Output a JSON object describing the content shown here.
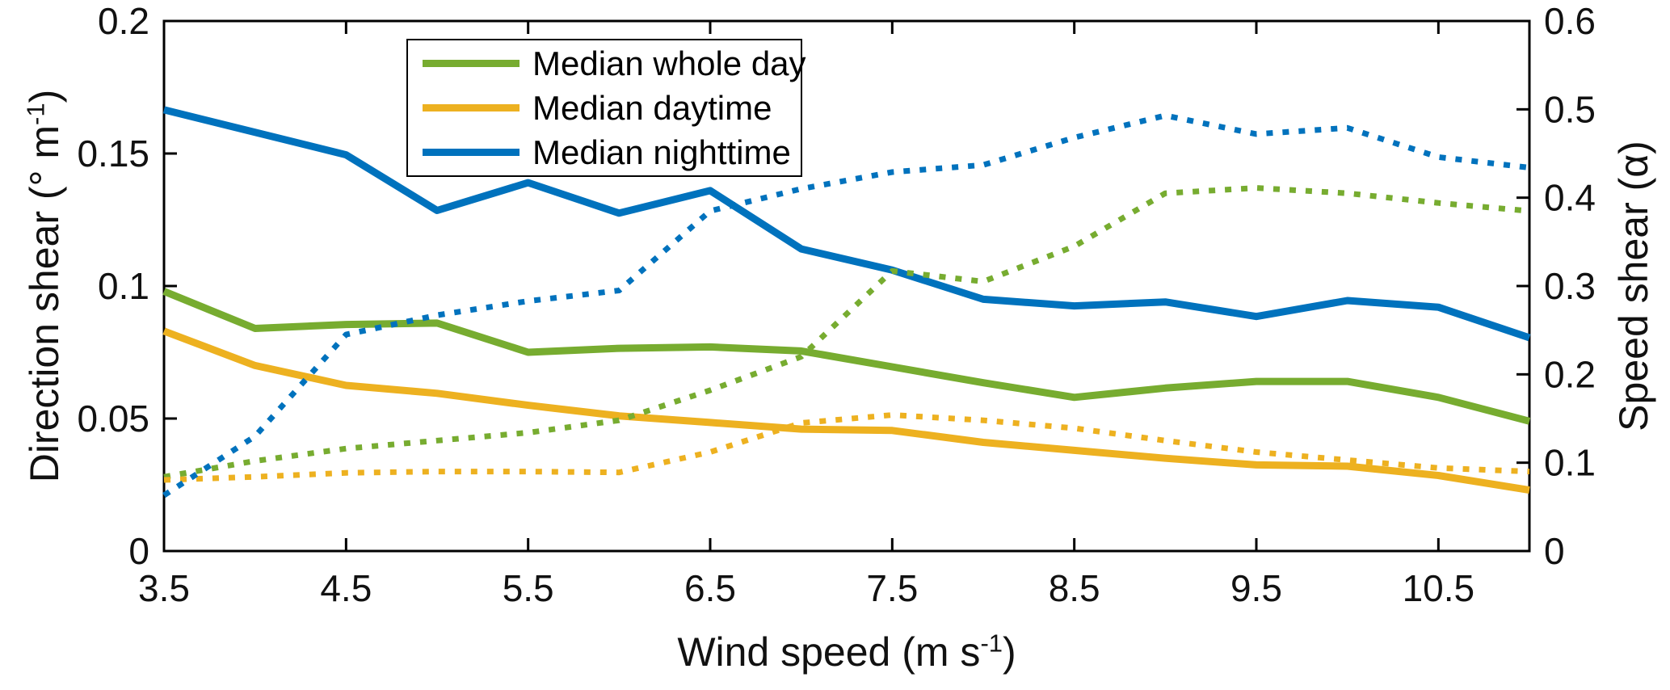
{
  "chart_data": {
    "type": "line",
    "title": "",
    "xlabel": "Wind speed (m s⁻¹)",
    "xlabel_parts": {
      "pre": "Wind speed (m s",
      "sup": "-1",
      "post": ")"
    },
    "ylabel_left": "Direction shear (° m⁻¹)",
    "ylabel_left_parts": {
      "pre": "Direction shear (° m",
      "sup": "-1",
      "post": ")"
    },
    "ylabel_right": "Speed shear (α)",
    "xlim": [
      3.5,
      11
    ],
    "ylim_left": [
      0,
      0.2
    ],
    "ylim_right": [
      0,
      0.6
    ],
    "grid": false,
    "x_ticks": [
      3.5,
      4.5,
      5.5,
      6.5,
      7.5,
      8.5,
      9.5,
      10.5
    ],
    "x_tick_labels": [
      "3.5",
      "4.5",
      "5.5",
      "6.5",
      "7.5",
      "8.5",
      "9.5",
      "10.5"
    ],
    "y_ticks_left": [
      0,
      0.05,
      0.1,
      0.15,
      0.2
    ],
    "y_tick_labels_left": [
      "0",
      "0.05",
      "0.1",
      "0.15",
      "0.2"
    ],
    "y_ticks_right": [
      0,
      0.1,
      0.2,
      0.3,
      0.4,
      0.5,
      0.6
    ],
    "y_tick_labels_right": [
      "0",
      "0.1",
      "0.2",
      "0.3",
      "0.4",
      "0.5",
      "0.6"
    ],
    "x": [
      3.5,
      4,
      4.5,
      5,
      5.5,
      6,
      6.5,
      7,
      7.5,
      8,
      8.5,
      9,
      9.5,
      10,
      10.5,
      11
    ],
    "series": [
      {
        "name": "Median whole day — direction shear",
        "legend": "Median whole day",
        "in_legend": true,
        "axis": "left",
        "style": "solid",
        "color": "#77AC30",
        "values": [
          0.098,
          0.084,
          0.0855,
          0.086,
          0.075,
          0.0765,
          0.077,
          0.0755,
          0.0695,
          0.0635,
          0.058,
          0.0615,
          0.064,
          0.064,
          0.058,
          0.049
        ]
      },
      {
        "name": "Median daytime — direction shear",
        "legend": "Median daytime",
        "in_legend": true,
        "axis": "left",
        "style": "solid",
        "color": "#EDB120",
        "values": [
          0.083,
          0.07,
          0.0625,
          0.0595,
          0.055,
          0.051,
          0.0485,
          0.046,
          0.0455,
          0.041,
          0.038,
          0.035,
          0.0325,
          0.032,
          0.0285,
          0.023
        ]
      },
      {
        "name": "Median nighttime — direction shear",
        "legend": "Median nighttime",
        "in_legend": true,
        "axis": "left",
        "style": "solid",
        "color": "#0072BD",
        "values": [
          0.1665,
          0.158,
          0.1495,
          0.1285,
          0.139,
          0.1275,
          0.136,
          0.114,
          0.106,
          0.095,
          0.0925,
          0.094,
          0.0885,
          0.0945,
          0.092,
          0.0805
        ]
      },
      {
        "name": "Median whole day — speed shear",
        "legend": "Median whole day",
        "in_legend": false,
        "axis": "right",
        "style": "dotted",
        "color": "#77AC30",
        "values": [
          0.084,
          0.102,
          0.116,
          0.125,
          0.134,
          0.148,
          0.182,
          0.22,
          0.317,
          0.305,
          0.345,
          0.405,
          0.411,
          0.405,
          0.394,
          0.385
        ]
      },
      {
        "name": "Median daytime — speed shear",
        "legend": "Median daytime",
        "in_legend": false,
        "axis": "right",
        "style": "dotted",
        "color": "#EDB120",
        "values": [
          0.0805,
          0.084,
          0.0885,
          0.09,
          0.09,
          0.089,
          0.112,
          0.145,
          0.154,
          0.148,
          0.139,
          0.125,
          0.112,
          0.103,
          0.094,
          0.09
        ]
      },
      {
        "name": "Median nighttime — speed shear",
        "legend": "Median nighttime",
        "in_legend": false,
        "axis": "right",
        "style": "dotted",
        "color": "#0072BD",
        "values": [
          0.063,
          0.13,
          0.245,
          0.267,
          0.283,
          0.295,
          0.385,
          0.41,
          0.429,
          0.437,
          0.468,
          0.493,
          0.472,
          0.479,
          0.446,
          0.434
        ]
      }
    ],
    "legend_position": "top-center-left",
    "axis_color": "#000000"
  }
}
